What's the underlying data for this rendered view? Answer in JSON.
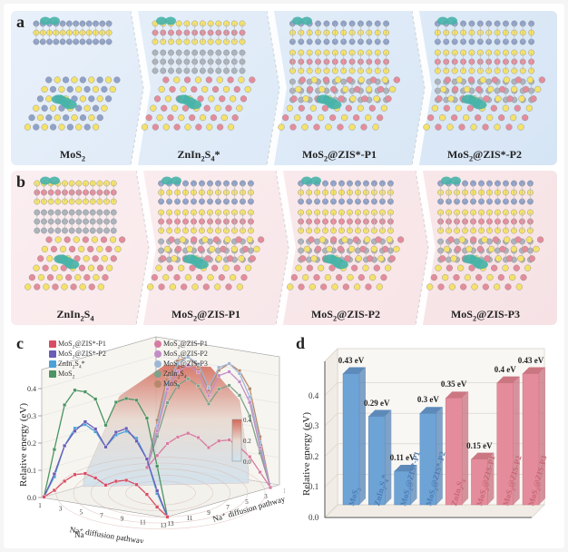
{
  "panel_a": {
    "label": "a",
    "bg_gradient_from": "#e8f0fa",
    "bg_gradient_to": "#d6e5f5",
    "columns": [
      {
        "label": "MoS₂",
        "label_html": "MoS<sub>2</sub>",
        "width": 128,
        "layers_side": [
          [
            "#8fa2c9",
            "#f4e26a",
            "#8fa2c9"
          ]
        ],
        "top_pattern": "MoS2"
      },
      {
        "label": "ZnIn₂S₄*",
        "label_html": "ZnIn<sub>2</sub>S<sub>4</sub>*",
        "width": 150,
        "layers_side": [
          [
            "#f4e26a",
            "#e58c9c",
            "#f4e26a"
          ],
          [
            "#abb3bd",
            "#abb3bd",
            "#abb3bd"
          ]
        ],
        "top_pattern": "ZIS"
      },
      {
        "label": "MoS₂@ZIS*-P1",
        "label_html": "MoS<sub>2</sub>@ZIS*-P1",
        "width": 160,
        "layers_side": [
          [
            "#8fa2c9",
            "#f4e26a",
            "#8fa2c9"
          ],
          [
            "#f4e26a",
            "#e58c9c",
            "#f4e26a"
          ],
          [
            "#abb3bd",
            "#abb3bd",
            "#abb3bd"
          ]
        ],
        "top_pattern": "ZIS"
      },
      {
        "label": "MoS₂@ZIS*-P2",
        "label_html": "MoS<sub>2</sub>@ZIS*-P2",
        "width": 160,
        "layers_side": [
          [
            "#8fa2c9",
            "#f4e26a",
            "#8fa2c9"
          ],
          [
            "#f4e26a",
            "#e58c9c",
            "#f4e26a"
          ],
          [
            "#abb3bd",
            "#abb3bd",
            "#abb3bd"
          ]
        ],
        "top_pattern": "ZIS"
      }
    ]
  },
  "panel_b": {
    "label": "b",
    "bg_gradient_from": "#fbeef0",
    "bg_gradient_to": "#f6e2e5",
    "columns": [
      {
        "label": "ZnIn₂S₄",
        "label_html": "ZnIn<sub>2</sub>S<sub>4</sub>",
        "width": 134,
        "layers_side": [
          [
            "#f4e26a",
            "#e58c9c",
            "#f4e26a"
          ],
          [
            "#abb3bd",
            "#abb3bd",
            "#abb3bd"
          ]
        ],
        "top_pattern": "ZIS"
      },
      {
        "label": "MoS₂@ZIS-P1",
        "label_html": "MoS<sub>2</sub>@ZIS-P1",
        "width": 154,
        "layers_side": [
          [
            "#8fa2c9",
            "#f4e26a",
            "#8fa2c9"
          ],
          [
            "#f4e26a",
            "#e58c9c",
            "#f4e26a"
          ],
          [
            "#abb3bd",
            "#abb3bd",
            "#abb3bd"
          ]
        ],
        "top_pattern": "ZIS"
      },
      {
        "label": "MoS₂@ZIS-P2",
        "label_html": "MoS<sub>2</sub>@ZIS-P2",
        "width": 154,
        "layers_side": [
          [
            "#8fa2c9",
            "#f4e26a",
            "#8fa2c9"
          ],
          [
            "#f4e26a",
            "#e58c9c",
            "#f4e26a"
          ],
          [
            "#abb3bd",
            "#abb3bd",
            "#abb3bd"
          ]
        ],
        "top_pattern": "ZIS"
      },
      {
        "label": "MoS₂@ZIS-P3",
        "label_html": "MoS<sub>2</sub>@ZIS-P3",
        "width": 154,
        "layers_side": [
          [
            "#8fa2c9",
            "#f4e26a",
            "#8fa2c9"
          ],
          [
            "#f4e26a",
            "#e58c9c",
            "#f4e26a"
          ],
          [
            "#abb3bd",
            "#abb3bd",
            "#abb3bd"
          ]
        ],
        "top_pattern": "ZIS"
      }
    ]
  },
  "panel_c": {
    "label": "c",
    "type": "surface3d_with_lines",
    "y_label": "Relative energy (eV)",
    "x1_label": "Na⁺ diffusion pathway",
    "x2_label": "Na⁺ diffusion pathway",
    "z_ticks": [
      0,
      0.1,
      0.2,
      0.3,
      0.4
    ],
    "x_ticks": [
      1,
      3,
      5,
      7,
      9,
      11,
      13
    ],
    "colorbar_min": 0,
    "colorbar_max": 0.4,
    "colorbar_colors": [
      "#cfe2ee",
      "#e8d9d0",
      "#d46a5a"
    ],
    "legend_left": [
      {
        "label_html": "MoS<sub>2</sub>@ZIS*-P1",
        "color": "#d84d63",
        "marker": "square"
      },
      {
        "label_html": "MoS<sub>2</sub>@ZIS*-P2",
        "color": "#6a5cb7",
        "marker": "square"
      },
      {
        "label_html": "ZnIn<sub>2</sub>S<sub>4</sub>*",
        "color": "#4aa2d6",
        "marker": "square"
      },
      {
        "label_html": "MoS<sub>2</sub>",
        "color": "#4b9463",
        "marker": "square"
      }
    ],
    "legend_right": [
      {
        "label_html": "MoS<sub>2</sub>@ZIS-P1",
        "color": "#d87ba0"
      },
      {
        "label_html": "MoS<sub>2</sub>@ZIS-P2",
        "color": "#c28cc6"
      },
      {
        "label_html": "MoS<sub>2</sub>@ZIS-P3",
        "color": "#9fb7d6"
      },
      {
        "label_html": "ZnIn<sub>2</sub>S<sub>4</sub>",
        "color": "#7ea18a"
      },
      {
        "label_html": "MoS<sub>2</sub>",
        "color": "#b7886b"
      }
    ],
    "series_front": [
      {
        "name": "MoS2",
        "color": "#4b9463",
        "y": [
          0,
          0.18,
          0.35,
          0.41,
          0.41,
          0.39,
          0.3,
          0.39,
          0.41,
          0.41,
          0.35,
          0.18,
          0
        ]
      },
      {
        "name": "ZnIn2S4*",
        "color": "#4aa2d6",
        "y": [
          0,
          0.08,
          0.2,
          0.27,
          0.29,
          0.27,
          0.22,
          0.27,
          0.29,
          0.27,
          0.2,
          0.08,
          0
        ]
      },
      {
        "name": "MoS2@ZIS*-P2",
        "color": "#6a5cb7",
        "y": [
          0,
          0.09,
          0.2,
          0.26,
          0.3,
          0.28,
          0.22,
          0.28,
          0.3,
          0.26,
          0.2,
          0.09,
          0
        ]
      },
      {
        "name": "MoS2@ZIS*-P1",
        "color": "#d84d63",
        "y": [
          0,
          0.03,
          0.07,
          0.1,
          0.11,
          0.1,
          0.08,
          0.1,
          0.11,
          0.1,
          0.07,
          0.03,
          0
        ]
      }
    ],
    "series_back": [
      {
        "name": "MoS2",
        "color": "#b7886b",
        "y": [
          0,
          0.18,
          0.35,
          0.41,
          0.43,
          0.4,
          0.32,
          0.4,
          0.43,
          0.41,
          0.35,
          0.18,
          0
        ]
      },
      {
        "name": "ZnIn2S4",
        "color": "#7ea18a",
        "y": [
          0,
          0.12,
          0.25,
          0.32,
          0.35,
          0.33,
          0.27,
          0.33,
          0.35,
          0.32,
          0.25,
          0.12,
          0
        ]
      },
      {
        "name": "MoS2@ZIS-P3",
        "color": "#9fb7d6",
        "y": [
          0,
          0.16,
          0.32,
          0.4,
          0.43,
          0.41,
          0.33,
          0.41,
          0.43,
          0.4,
          0.32,
          0.16,
          0
        ]
      },
      {
        "name": "MoS2@ZIS-P2",
        "color": "#c28cc6",
        "y": [
          0,
          0.14,
          0.3,
          0.37,
          0.4,
          0.38,
          0.3,
          0.38,
          0.4,
          0.37,
          0.3,
          0.14,
          0
        ]
      },
      {
        "name": "MoS2@ZIS-P1",
        "color": "#d87ba0",
        "y": [
          0,
          0.05,
          0.1,
          0.13,
          0.15,
          0.14,
          0.11,
          0.14,
          0.15,
          0.13,
          0.1,
          0.05,
          0
        ]
      }
    ]
  },
  "panel_d": {
    "label": "d",
    "type": "bar3d_grouped",
    "y_label": "Relative energy (eV)",
    "y_ticks": [
      0,
      0.1,
      0.2,
      0.3,
      0.4
    ],
    "ylim": [
      0,
      0.5
    ],
    "blue_color": "#6ea3d6",
    "blue_color_shade": "#4d7db3",
    "red_color": "#e58c9c",
    "red_color_shade": "#c56876",
    "bg_color": "#f9f7f4",
    "grid_color": "#d6cfc5",
    "bars": [
      {
        "label_html": "MoS<sub>2</sub>",
        "value": 0.43,
        "value_text": "0.43 eV",
        "group": "blue"
      },
      {
        "label_html": "ZnIn<sub>2</sub>S<sub>4</sub>*",
        "value": 0.29,
        "value_text": "0.29 eV",
        "group": "blue"
      },
      {
        "label_html": "MoS<sub>2</sub>@ZIS*-P1",
        "value": 0.11,
        "value_text": "0.11 eV",
        "group": "blue"
      },
      {
        "label_html": "MoS<sub>2</sub>@ZIS*-P2",
        "value": 0.3,
        "value_text": "0.3 eV",
        "group": "blue"
      },
      {
        "label_html": "ZnIn<sub>2</sub>S<sub>4</sub>",
        "value": 0.35,
        "value_text": "0.35 eV",
        "group": "red"
      },
      {
        "label_html": "MoS<sub>2</sub>@ZIS-P1",
        "value": 0.15,
        "value_text": "0.15 eV",
        "group": "red"
      },
      {
        "label_html": "MoS<sub>2</sub>@ZIS-P2",
        "value": 0.4,
        "value_text": "0.4 eV",
        "group": "red"
      },
      {
        "label_html": "MoS<sub>2</sub>@ZIS-P3",
        "value": 0.43,
        "value_text": "0.43 eV",
        "group": "red"
      }
    ]
  },
  "atom_colors": {
    "Mo": "#8fa2c9",
    "S": "#f4e26a",
    "In": "#e58c9c",
    "Zn": "#abb3bd",
    "Na_path": "#48b3a8"
  }
}
